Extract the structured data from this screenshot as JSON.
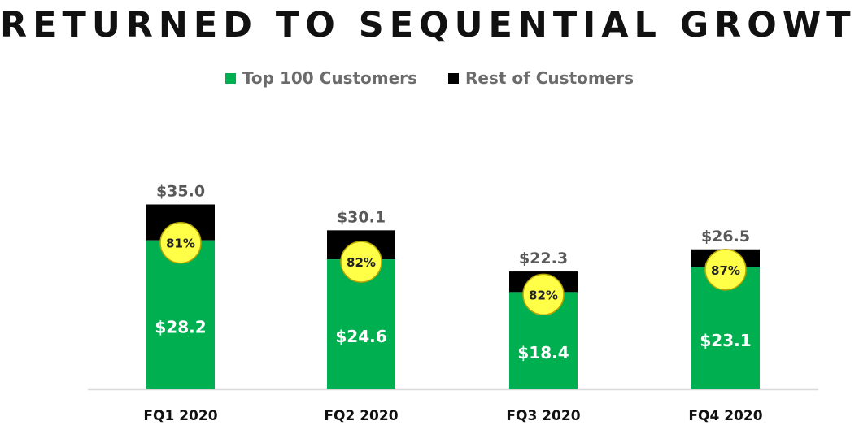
{
  "title": "RETURNED TO SEQUENTIAL GROWTH",
  "colors": {
    "top100": "#00b050",
    "rest": "#000000",
    "circle": "#ffff47",
    "circle_stroke": "#b6a300",
    "total_label": "#595959",
    "inner_label": "#ffffff",
    "axis": "#d9d9d9"
  },
  "chart_data": {
    "type": "bar",
    "stacked": true,
    "title": "RETURNED TO SEQUENTIAL GROWTH",
    "categories": [
      "FQ1 2020",
      "FQ2 2020",
      "FQ3 2020",
      "FQ4 2020"
    ],
    "series": [
      {
        "name": "Top 100 Customers",
        "values": [
          28.2,
          24.6,
          18.4,
          23.1
        ],
        "labels": [
          "$28.2",
          "$24.6",
          "$18.4",
          "$23.1"
        ]
      },
      {
        "name": "Rest of Customers",
        "values": [
          6.8,
          5.5,
          3.9,
          3.4
        ]
      }
    ],
    "totals": [
      35.0,
      30.1,
      22.3,
      26.5
    ],
    "total_labels": [
      "$35.0",
      "$30.1",
      "$22.3",
      "$26.5"
    ],
    "percent_labels": [
      "81%",
      "82%",
      "82%",
      "87%"
    ],
    "ylim": [
      0,
      40
    ],
    "xlabel": "",
    "ylabel": "",
    "grid": false,
    "legend": "top-center"
  }
}
